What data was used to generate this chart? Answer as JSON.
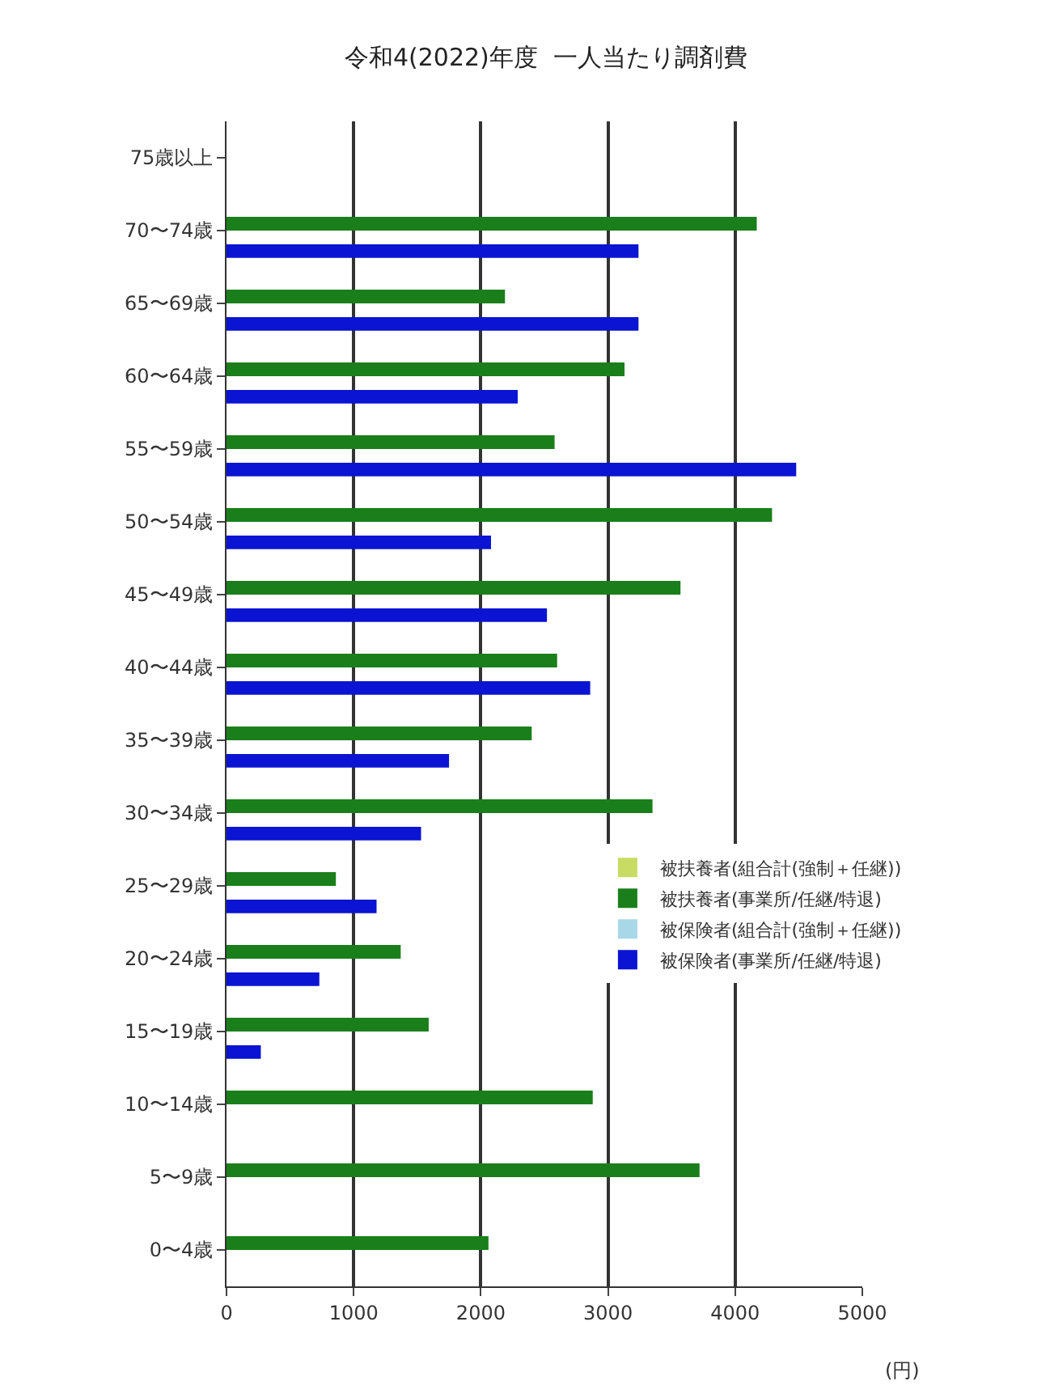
{
  "chart_data": {
    "type": "bar",
    "orientation": "horizontal",
    "title": "令和4(2022)年度  一人当たり調剤費",
    "categories": [
      "75歳以上",
      "70〜74歳",
      "65〜69歳",
      "60〜64歳",
      "55〜59歳",
      "50〜54歳",
      "45〜49歳",
      "40〜44歳",
      "35〜39歳",
      "30〜34歳",
      "25〜29歳",
      "20〜24歳",
      "15〜19歳",
      "10〜14歳",
      "5〜9歳",
      "0〜4歳"
    ],
    "series": [
      {
        "name": "被扶養者(組合計(強制＋任継))",
        "color": "#c8dc64",
        "values": [
          null,
          null,
          null,
          null,
          null,
          null,
          null,
          null,
          null,
          null,
          null,
          null,
          null,
          null,
          null,
          null
        ]
      },
      {
        "name": "被扶養者(事業所/任継/特退)",
        "color": "#1a7f1a",
        "values": [
          null,
          4170,
          2190,
          3130,
          2580,
          4290,
          3570,
          2600,
          2400,
          3350,
          860,
          1370,
          1590,
          2880,
          3720,
          2060
        ]
      },
      {
        "name": "被保険者(組合計(強制＋任継))",
        "color": "#a8d8e8",
        "values": [
          null,
          null,
          null,
          null,
          null,
          null,
          null,
          null,
          null,
          null,
          null,
          null,
          null,
          null,
          null,
          null
        ]
      },
      {
        "name": "被保険者(事業所/任継/特退)",
        "color": "#0a14d2",
        "values": [
          null,
          3240,
          3240,
          2290,
          4480,
          2080,
          2520,
          2860,
          1750,
          1530,
          1180,
          730,
          270,
          null,
          null,
          null
        ]
      }
    ],
    "xlim": [
      0,
      5000
    ],
    "xticks": [
      0,
      1000,
      2000,
      3000,
      4000,
      5000
    ],
    "grid": "x",
    "legend": "right",
    "annotations": [
      "(円)"
    ]
  }
}
